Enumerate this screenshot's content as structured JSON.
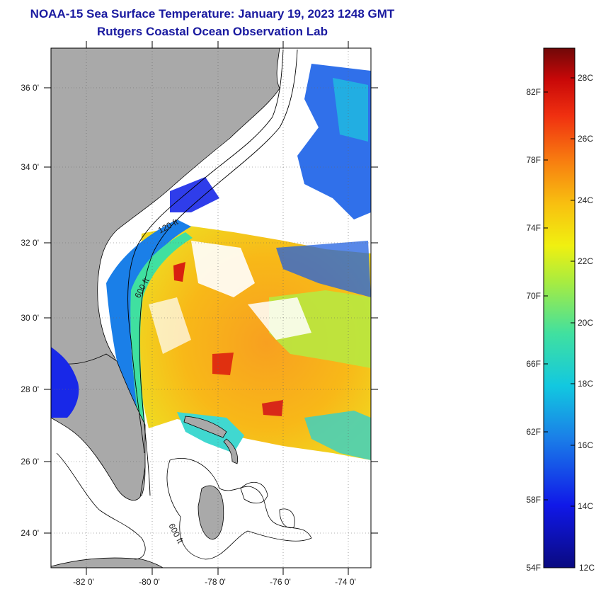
{
  "header": {
    "title": "NOAA-15 Sea Surface Temperature:  January 19, 2023 1248 GMT",
    "subtitle": "Rutgers Coastal Ocean Observation Lab"
  },
  "map": {
    "lat_labels": [
      "36 0'",
      "34 0'",
      "32 0'",
      "30 0'",
      "28 0'",
      "26 0'",
      "24 0'"
    ],
    "lon_labels": [
      "-82 0'",
      "-80 0'",
      "-78 0'",
      "-76 0'",
      "-74 0'"
    ],
    "contour_labels": [
      "120 ft",
      "600 ft",
      "600 ft"
    ],
    "colors": {
      "land": "#a9a9a9",
      "cloud_nodata": "#ffffff",
      "coast": "#000000"
    }
  },
  "colorbar": {
    "fahrenheit_labels": [
      "82F",
      "78F",
      "74F",
      "70F",
      "66F",
      "62F",
      "58F",
      "54F"
    ],
    "celsius_labels": [
      "28C",
      "26C",
      "24C",
      "22C",
      "20C",
      "18C",
      "16C",
      "14C",
      "12C"
    ],
    "range_c": [
      12,
      29
    ]
  }
}
